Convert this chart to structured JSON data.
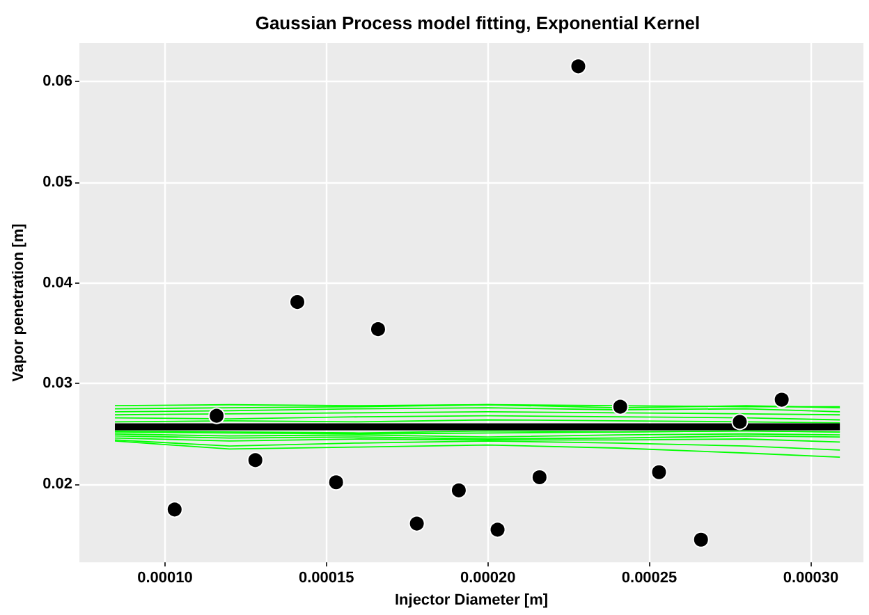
{
  "chart_data": {
    "type": "line",
    "title": "Gaussian Process model fitting, Exponential Kernel",
    "xlabel": "Injector Diameter [m]",
    "ylabel": "Vapor penetration [m]",
    "xlim": [
      7.35e-05,
      0.0003163
    ],
    "ylim": [
      0.01226,
      0.0638
    ],
    "xticks": [
      {
        "value": 0.0001,
        "label": "0.00010"
      },
      {
        "value": 0.00015,
        "label": "0.00015"
      },
      {
        "value": 0.0002,
        "label": "0.00020"
      },
      {
        "value": 0.00025,
        "label": "0.00025"
      },
      {
        "value": 0.0003,
        "label": "0.00030"
      }
    ],
    "yticks": [
      0.02,
      0.03,
      0.04,
      0.05,
      0.06
    ],
    "grid": true,
    "line_style": "solid",
    "series": [
      {
        "color": "#00ff00",
        "x": [
          8.45e-05,
          0.00012,
          0.00016,
          0.0002,
          0.00024,
          0.00028,
          0.000309
        ],
        "values": [
          0.0278,
          0.0279,
          0.0278,
          0.0279,
          0.0278,
          0.0277,
          0.0277
        ]
      },
      {
        "color": "#00ff00",
        "x": [
          8.45e-05,
          0.00012,
          0.00016,
          0.0002,
          0.00024,
          0.00028,
          0.000309
        ],
        "values": [
          0.0275,
          0.0276,
          0.0277,
          0.0279,
          0.0276,
          0.0278,
          0.0276
        ]
      },
      {
        "color": "#00ff00",
        "x": [
          8.45e-05,
          0.00012,
          0.00016,
          0.0002,
          0.00024,
          0.00028,
          0.000309
        ],
        "values": [
          0.0272,
          0.0273,
          0.0275,
          0.0276,
          0.0274,
          0.0275,
          0.0272
        ]
      },
      {
        "color": "#00ff00",
        "x": [
          8.45e-05,
          0.00012,
          0.00016,
          0.0002,
          0.00024,
          0.00028,
          0.000309
        ],
        "values": [
          0.0269,
          0.027,
          0.0271,
          0.0272,
          0.0271,
          0.027,
          0.0269
        ]
      },
      {
        "color": "#00ff00",
        "x": [
          8.45e-05,
          0.00012,
          0.00016,
          0.0002,
          0.00024,
          0.00028,
          0.000309
        ],
        "values": [
          0.0266,
          0.0265,
          0.0267,
          0.0268,
          0.0267,
          0.0266,
          0.0264
        ]
      },
      {
        "color": "#00ff00",
        "x": [
          8.45e-05,
          0.00012,
          0.00016,
          0.0002,
          0.00024,
          0.00028,
          0.000309
        ],
        "values": [
          0.0262,
          0.0263,
          0.0262,
          0.0264,
          0.0263,
          0.0262,
          0.0261
        ]
      },
      {
        "color": "#00ff00",
        "x": [
          8.45e-05,
          0.00012,
          0.00016,
          0.0002,
          0.00024,
          0.00028,
          0.000309
        ],
        "values": [
          0.0253,
          0.0252,
          0.0251,
          0.0253,
          0.0252,
          0.0253,
          0.0252
        ]
      },
      {
        "color": "#00ff00",
        "x": [
          8.45e-05,
          0.00012,
          0.00016,
          0.0002,
          0.00024,
          0.00028,
          0.000309
        ],
        "values": [
          0.0252,
          0.0251,
          0.025,
          0.0251,
          0.0252,
          0.0253,
          0.0252
        ]
      },
      {
        "color": "#00ff00",
        "x": [
          8.45e-05,
          0.00012,
          0.00016,
          0.0002,
          0.00024,
          0.00028,
          0.000309
        ],
        "values": [
          0.025,
          0.0248,
          0.0249,
          0.0247,
          0.0249,
          0.025,
          0.0249
        ]
      },
      {
        "color": "#00ff00",
        "x": [
          8.45e-05,
          0.00012,
          0.00016,
          0.0002,
          0.00024,
          0.00028,
          0.000309
        ],
        "values": [
          0.0248,
          0.0246,
          0.0247,
          0.0245,
          0.0246,
          0.0248,
          0.0247
        ]
      },
      {
        "color": "#00ff00",
        "x": [
          8.45e-05,
          0.00012,
          0.00016,
          0.0002,
          0.00024,
          0.00028,
          0.000309
        ],
        "values": [
          0.0246,
          0.0243,
          0.0245,
          0.0244,
          0.0244,
          0.0245,
          0.0242
        ]
      },
      {
        "color": "#00ff00",
        "x": [
          8.45e-05,
          0.00012,
          0.00016,
          0.0002,
          0.00024,
          0.00028,
          0.000309
        ],
        "values": [
          0.0244,
          0.0238,
          0.0241,
          0.0243,
          0.0241,
          0.0238,
          0.0234
        ]
      },
      {
        "color": "#00ff00",
        "x": [
          8.45e-05,
          0.00012,
          0.00016,
          0.0002,
          0.00024,
          0.00028,
          0.000309
        ],
        "values": [
          0.0243,
          0.0235,
          0.0237,
          0.0239,
          0.0236,
          0.0231,
          0.0227
        ]
      },
      {
        "color": "#000000",
        "x": [
          8.45e-05,
          0.000309
        ],
        "values": [
          0.0257,
          0.0257
        ]
      },
      {
        "type": "scatter",
        "color": "#000000",
        "marker": "circle",
        "x": [
          0.000103,
          0.000116,
          0.000128,
          0.000141,
          0.000153,
          0.000166,
          0.000178,
          0.000191,
          0.000203,
          0.000216,
          0.000228,
          0.000241,
          0.000253,
          0.000266,
          0.000278,
          0.000291
        ],
        "values": [
          0.0175,
          0.0268,
          0.0224,
          0.0381,
          0.0202,
          0.0354,
          0.0161,
          0.0194,
          0.0155,
          0.0207,
          0.0615,
          0.0277,
          0.0212,
          0.0145,
          0.0262,
          0.0284
        ]
      }
    ]
  }
}
